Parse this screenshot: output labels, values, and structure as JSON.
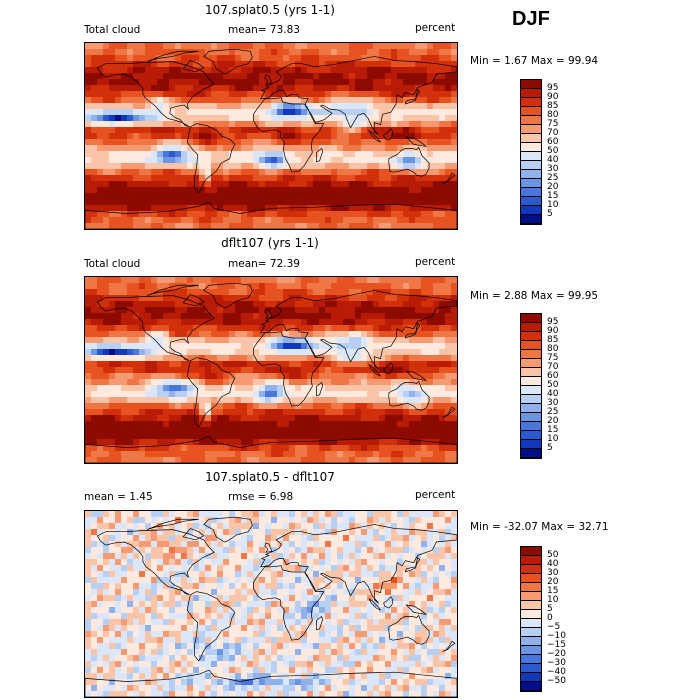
{
  "season": "DJF",
  "panels": [
    {
      "title": "107.splat0.5 (yrs 1-1)",
      "left_label": "Total cloud",
      "mid_label": "mean=  73.83",
      "right_label": "percent",
      "range_label": "Min =    1.67 Max =   99.94",
      "min": 1.67,
      "max": 99.94,
      "mean": 73.83,
      "kind": "abs",
      "colorbar": {
        "labels": [
          "95",
          "90",
          "85",
          "80",
          "75",
          "70",
          "60",
          "50",
          "40",
          "30",
          "25",
          "20",
          "15",
          "10",
          "5"
        ],
        "colors": [
          "#8c0a00",
          "#b81c06",
          "#d22f0b",
          "#e65220",
          "#ef7746",
          "#f59a72",
          "#fac4a8",
          "#fde9de",
          "#dbe7f8",
          "#b7cff3",
          "#8fb2ec",
          "#6b95e3",
          "#4876da",
          "#2a5acd",
          "#1038b8",
          "#000e88"
        ]
      }
    },
    {
      "title": "dflt107 (yrs 1-1)",
      "left_label": "Total cloud",
      "mid_label": "mean=  72.39",
      "right_label": "percent",
      "range_label": "Min =    2.88 Max =   99.95",
      "min": 2.88,
      "max": 99.95,
      "mean": 72.39,
      "kind": "abs",
      "colorbar": {
        "labels": [
          "95",
          "90",
          "85",
          "80",
          "75",
          "70",
          "60",
          "50",
          "40",
          "30",
          "25",
          "20",
          "15",
          "10",
          "5"
        ],
        "colors": [
          "#8c0a00",
          "#b81c06",
          "#d22f0b",
          "#e65220",
          "#ef7746",
          "#f59a72",
          "#fac4a8",
          "#fde9de",
          "#dbe7f8",
          "#b7cff3",
          "#8fb2ec",
          "#6b95e3",
          "#4876da",
          "#2a5acd",
          "#1038b8",
          "#000e88"
        ]
      }
    },
    {
      "title": "107.splat0.5 - dflt107",
      "left_label": "mean =    1.45",
      "mid_label": "rmse =    6.98",
      "right_label": "percent",
      "range_label": "Min = -32.07 Max =   32.71",
      "min": -32.07,
      "max": 32.71,
      "mean": 1.45,
      "kind": "diff",
      "colorbar": {
        "labels": [
          "50",
          "40",
          "30",
          "20",
          "15",
          "10",
          "5",
          "0",
          "−5",
          "−10",
          "−15",
          "−20",
          "−30",
          "−40",
          "−50"
        ],
        "colors": [
          "#8c0a00",
          "#b81c06",
          "#d22f0b",
          "#e65220",
          "#ef7746",
          "#f59a72",
          "#fac4a8",
          "#fde9de",
          "#dbe7f8",
          "#b7cff3",
          "#8fb2ec",
          "#6b95e3",
          "#4876da",
          "#2a5acd",
          "#1038b8",
          "#000e88"
        ]
      }
    }
  ]
}
